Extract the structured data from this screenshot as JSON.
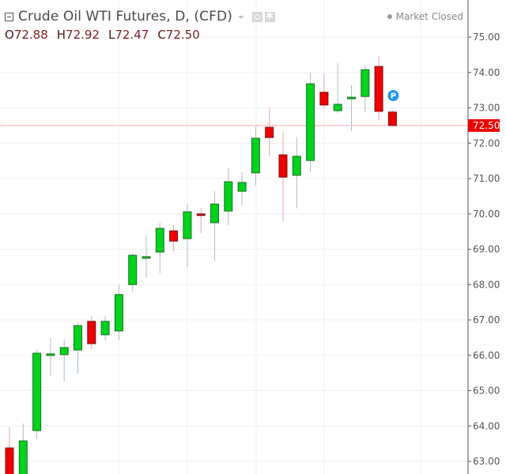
{
  "header": {
    "title": "Crude Oil WTI Futures, D, (CFD)",
    "ohlc": {
      "open_label": "O",
      "open": "72.88",
      "high_label": "H",
      "high": "72.92",
      "low_label": "L",
      "low": "72.47",
      "close_label": "C",
      "close": "72.50"
    },
    "icons": [
      "collapse-icon",
      "caret-down-icon",
      "eye-icon",
      "gear-icon"
    ]
  },
  "status": {
    "label": "Market Closed",
    "dot_color": "#999999"
  },
  "colors": {
    "up": "#00d31c",
    "down": "#ee0000",
    "up_border": "#1f6e2a",
    "down_border": "#7a0f0f",
    "up_wick": "#a8bfc5",
    "down_wick": "#f2a0a0",
    "price_line": "#e85a5a",
    "price_tag": "#ee0000",
    "badge": "#2196f3",
    "grid": "#f0f0f0",
    "axis": "#555555"
  },
  "current_price": {
    "label": "72.50",
    "value": 72.5
  },
  "badge": {
    "label": "P",
    "candle_index": 28,
    "price": 73.3
  },
  "chart_data": {
    "type": "candlestick",
    "title": "Crude Oil WTI Futures, D, (CFD)",
    "xlabel": "",
    "ylabel": "",
    "ylim": [
      62.6,
      75.4
    ],
    "yticks": [
      63.0,
      64.0,
      65.0,
      66.0,
      67.0,
      68.0,
      69.0,
      70.0,
      71.0,
      72.0,
      73.0,
      74.0,
      75.0
    ],
    "ytick_labels": [
      "63.00",
      "64.00",
      "65.00",
      "66.00",
      "67.00",
      "68.00",
      "69.00",
      "70.00",
      "71.00",
      "72.00",
      "73.00",
      "74.00",
      "75.00"
    ],
    "grid": true,
    "candles": [
      {
        "o": 63.38,
        "h": 63.96,
        "l": 62.5,
        "c": 62.6
      },
      {
        "o": 62.6,
        "h": 64.07,
        "l": 62.5,
        "c": 63.58
      },
      {
        "o": 63.87,
        "h": 66.15,
        "l": 63.63,
        "c": 66.06
      },
      {
        "o": 66.0,
        "h": 66.5,
        "l": 65.4,
        "c": 66.04
      },
      {
        "o": 66.02,
        "h": 66.44,
        "l": 65.26,
        "c": 66.22
      },
      {
        "o": 66.15,
        "h": 66.93,
        "l": 65.48,
        "c": 66.84
      },
      {
        "o": 66.96,
        "h": 67.11,
        "l": 66.17,
        "c": 66.33
      },
      {
        "o": 66.58,
        "h": 67.11,
        "l": 66.42,
        "c": 66.96
      },
      {
        "o": 66.69,
        "h": 68.0,
        "l": 66.42,
        "c": 67.72
      },
      {
        "o": 68.0,
        "h": 68.9,
        "l": 67.8,
        "c": 68.83
      },
      {
        "o": 68.76,
        "h": 69.39,
        "l": 68.2,
        "c": 68.79
      },
      {
        "o": 68.92,
        "h": 69.75,
        "l": 68.32,
        "c": 69.59
      },
      {
        "o": 69.52,
        "h": 69.68,
        "l": 68.94,
        "c": 69.23
      },
      {
        "o": 69.3,
        "h": 70.28,
        "l": 68.5,
        "c": 70.06
      },
      {
        "o": 70.0,
        "h": 70.17,
        "l": 69.46,
        "c": 69.97
      },
      {
        "o": 69.75,
        "h": 70.64,
        "l": 68.67,
        "c": 70.28
      },
      {
        "o": 70.08,
        "h": 71.29,
        "l": 69.68,
        "c": 70.91
      },
      {
        "o": 70.64,
        "h": 71.18,
        "l": 70.24,
        "c": 70.89
      },
      {
        "o": 71.16,
        "h": 72.47,
        "l": 70.8,
        "c": 72.14
      },
      {
        "o": 72.45,
        "h": 72.99,
        "l": 71.63,
        "c": 72.16
      },
      {
        "o": 71.67,
        "h": 72.3,
        "l": 69.8,
        "c": 71.04
      },
      {
        "o": 71.09,
        "h": 72.18,
        "l": 70.15,
        "c": 71.63
      },
      {
        "o": 71.51,
        "h": 74.0,
        "l": 71.18,
        "c": 73.68
      },
      {
        "o": 73.44,
        "h": 73.97,
        "l": 72.97,
        "c": 73.08
      },
      {
        "o": 72.92,
        "h": 74.26,
        "l": 72.85,
        "c": 73.1
      },
      {
        "o": 73.28,
        "h": 73.64,
        "l": 72.34,
        "c": 73.3
      },
      {
        "o": 73.32,
        "h": 74.2,
        "l": 72.88,
        "c": 74.08
      },
      {
        "o": 74.17,
        "h": 74.46,
        "l": 72.65,
        "c": 72.9
      },
      {
        "o": 72.88,
        "h": 72.92,
        "l": 72.47,
        "c": 72.5
      }
    ],
    "last_price": 72.5,
    "legend_position": "top-left"
  }
}
